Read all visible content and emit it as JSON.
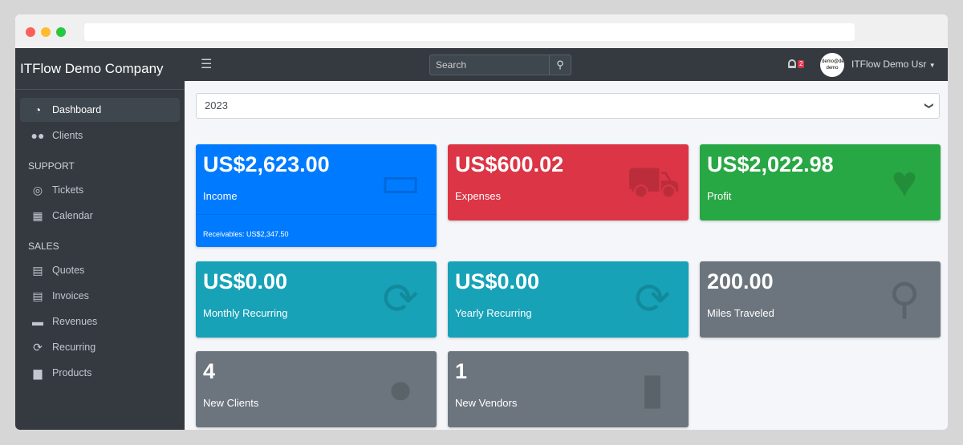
{
  "company": "ITFlow Demo Company",
  "sidebar": {
    "items": [
      {
        "label": "Dashboard",
        "icon": "tachometer-icon"
      },
      {
        "label": "Clients",
        "icon": "users-icon"
      },
      {
        "header": "SUPPORT"
      },
      {
        "label": "Tickets",
        "icon": "life-ring-icon"
      },
      {
        "label": "Calendar",
        "icon": "calendar-icon"
      },
      {
        "header": "SALES"
      },
      {
        "label": "Quotes",
        "icon": "file-icon"
      },
      {
        "label": "Invoices",
        "icon": "invoice-icon"
      },
      {
        "label": "Revenues",
        "icon": "credit-card-icon"
      },
      {
        "label": "Recurring",
        "icon": "sync-icon"
      },
      {
        "label": "Products",
        "icon": "box-icon"
      }
    ]
  },
  "topnav": {
    "search_placeholder": "Search",
    "notification_count": "2",
    "avatar_text": "demo@demo demo",
    "user": "ITFlow Demo Usr"
  },
  "year": "2023",
  "cards": [
    {
      "value": "US$2,623.00",
      "label": "Income",
      "footer": "Receivables: US$2,347.50",
      "color": "#007bff",
      "icon": "credit-card-icon"
    },
    {
      "value": "US$600.02",
      "label": "Expenses",
      "color": "#dc3545",
      "icon": "shopping-cart-icon"
    },
    {
      "value": "US$2,022.98",
      "label": "Profit",
      "color": "#28a745",
      "icon": "heart-icon"
    },
    {
      "value": "US$0.00",
      "label": "Monthly Recurring",
      "color": "#17a2b8",
      "icon": "sync-icon"
    },
    {
      "value": "US$0.00",
      "label": "Yearly Recurring",
      "color": "#17a2b8",
      "icon": "sync-icon"
    },
    {
      "value": "200.00",
      "label": "Miles Traveled",
      "color": "#6c757d",
      "icon": "route-icon"
    },
    {
      "value": "4",
      "label": "New Clients",
      "color": "#6c757d",
      "icon": "users-icon"
    },
    {
      "value": "1",
      "label": "New Vendors",
      "color": "#6c757d",
      "icon": "building-icon"
    }
  ]
}
